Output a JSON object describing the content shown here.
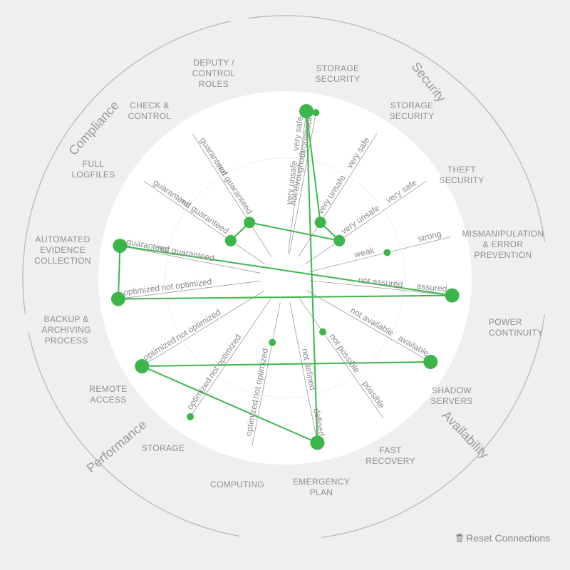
{
  "reset_button": {
    "label": "Reset Connections",
    "icon": "trash-icon"
  },
  "accent_color": "#3cb64a",
  "groups": [
    {
      "name": "Compliance"
    },
    {
      "name": "Security"
    },
    {
      "name": "Availability"
    },
    {
      "name": "Performance"
    }
  ],
  "axes": [
    {
      "id": "deputy",
      "label": [
        "DEPUTY /",
        "CONTROL",
        "ROLES"
      ],
      "group": "Compliance",
      "inner": "not throughout",
      "outer": "throughout",
      "value": "throughout"
    },
    {
      "id": "storage-security-1",
      "label": [
        "STORAGE",
        "SECURITY"
      ],
      "group": "Security",
      "inner": "very unsafe",
      "outer": "very safe",
      "value": "very safe"
    },
    {
      "id": "storage-security-2",
      "label": [
        "STORAGE",
        "SECURITY"
      ],
      "group": "Security",
      "inner": "very unsafe",
      "outer": "very safe",
      "value": "very unsafe"
    },
    {
      "id": "theft-security",
      "label": [
        "THEFT",
        "SECURITY"
      ],
      "group": "Security",
      "inner": "very unsafe",
      "outer": "very safe",
      "value": "very unsafe"
    },
    {
      "id": "mismanipulation",
      "label": [
        "MISMANIPULATION",
        "& ERROR",
        "PREVENTION"
      ],
      "group": "Security",
      "inner": "weak",
      "outer": "strong",
      "value": "middle"
    },
    {
      "id": "power-continuity",
      "label": [
        "POWER",
        "CONTINUITY"
      ],
      "group": "Availability",
      "inner": "not assured",
      "outer": "assured",
      "value": "assured"
    },
    {
      "id": "shadow-servers",
      "label": [
        "SHADOW",
        "SERVERS"
      ],
      "group": "Availability",
      "inner": "not available",
      "outer": "available",
      "value": "available"
    },
    {
      "id": "fast-recovery",
      "label": [
        "FAST",
        "RECOVERY"
      ],
      "group": "Availability",
      "inner": "not possible",
      "outer": "possible",
      "value": "not possible"
    },
    {
      "id": "emergency-plan",
      "label": [
        "EMERGENCY",
        "PLAN"
      ],
      "group": "Availability",
      "inner": "not defined",
      "outer": "defined",
      "value": "defined"
    },
    {
      "id": "computing",
      "label": [
        "COMPUTING"
      ],
      "group": "Performance",
      "inner": "not optimized",
      "outer": "optimized",
      "value": "not optimized"
    },
    {
      "id": "storage",
      "label": [
        "STORAGE"
      ],
      "group": "Performance",
      "inner": "not optimized",
      "outer": "optimized",
      "value": "optimized"
    },
    {
      "id": "remote-access",
      "label": [
        "REMOTE",
        "ACCESS"
      ],
      "group": "Performance",
      "inner": "not optimized",
      "outer": "optimized",
      "value": "optimized"
    },
    {
      "id": "backup",
      "label": [
        "BACKUP &",
        "ARCHIVING",
        "PROCESS"
      ],
      "group": "Performance",
      "inner": "not optimized",
      "outer": "optimized",
      "value": "optimized"
    },
    {
      "id": "automated-evidence",
      "label": [
        "AUTOMATED",
        "EVIDENCE",
        "COLLECTION"
      ],
      "group": "Compliance",
      "inner": "not guaranteed",
      "outer": "guaranteed",
      "value": "guaranteed"
    },
    {
      "id": "full-logfiles",
      "label": [
        "FULL",
        "LOGFILES"
      ],
      "group": "Compliance",
      "inner": "not guaranteed",
      "outer": "guaranteed",
      "value": "not guaranteed"
    },
    {
      "id": "check-control",
      "label": [
        "CHECK &",
        "CONTROL"
      ],
      "group": "Compliance",
      "inner": "not guaranteed",
      "outer": "guaranteed",
      "value": "not guaranteed"
    }
  ],
  "connections": [
    [
      "storage-security-1",
      "emergency-plan"
    ],
    [
      "emergency-plan",
      "remote-access"
    ],
    [
      "remote-access",
      "shadow-servers"
    ],
    [
      "automated-evidence",
      "power-continuity"
    ],
    [
      "power-continuity",
      "backup"
    ],
    [
      "backup",
      "automated-evidence"
    ],
    [
      "check-control",
      "theft-security"
    ],
    [
      "check-control",
      "full-logfiles"
    ],
    [
      "storage-security-1",
      "storage-security-2"
    ],
    [
      "storage-security-2",
      "theft-security"
    ]
  ]
}
